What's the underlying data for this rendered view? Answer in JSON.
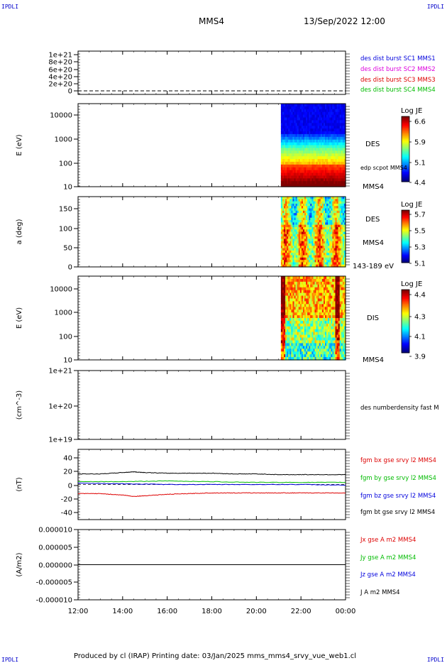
{
  "corner_label": "IPDLI",
  "header": {
    "spacecraft": "MMS4",
    "datetime": "13/Sep/2022 12:00"
  },
  "footer": "Produced by cl (IRAP)   Printing date: 03/Jan/2025   mms_mms4_srvy_vue_web1.cl",
  "colors": {
    "red": "#dd0000",
    "green": "#00bb00",
    "blue": "#0000dd",
    "magenta": "#dd00dd",
    "black": "#000000",
    "corner": "#0000cc"
  },
  "time_axis": {
    "ticks": [
      "12:00",
      "14:00",
      "16:00",
      "18:00",
      "20:00",
      "22:00",
      "00:00"
    ],
    "start_hours": 12,
    "end_hours": 24
  },
  "chart_data": [
    {
      "id": "p1",
      "type": "line",
      "ylabel": "",
      "yticks": [
        "1e+21",
        "8e+20",
        "6e+20",
        "4e+20",
        "2e+20",
        "0"
      ],
      "legend": [
        {
          "text": "des dist burst SC1 MMS1",
          "color": "#0000dd"
        },
        {
          "text": "des dist burst SC2 MMS2",
          "color": "#dd00dd"
        },
        {
          "text": "des dist burst SC3 MMS3",
          "color": "#dd0000"
        },
        {
          "text": "des dist burst SC4 MMS4",
          "color": "#00bb00"
        }
      ],
      "series": [
        {
          "x": [
            12,
            24
          ],
          "y": [
            0,
            0
          ],
          "style": "dashed"
        }
      ]
    },
    {
      "id": "p2",
      "type": "heatmap",
      "ylabel": "E (eV)",
      "yscale": "log",
      "yticks": [
        "10000",
        "1000",
        "100",
        "10"
      ],
      "side_labels": [
        "DES",
        "edp scpot MMS4",
        "MMS4"
      ],
      "colorbar": {
        "title": "Log JE",
        "ticks": [
          "6.6",
          "5.9",
          "5.1",
          "4.4"
        ]
      },
      "data_start_hours": 21.1
    },
    {
      "id": "p3",
      "type": "heatmap",
      "ylabel": "a (deg)",
      "yticks": [
        "150",
        "100",
        "50",
        "0"
      ],
      "side_labels": [
        "DES",
        "MMS4",
        "143-189 eV"
      ],
      "colorbar": {
        "title": "Log JE",
        "ticks": [
          "5.7",
          "5.5",
          "5.3",
          "5.1"
        ]
      },
      "data_start_hours": 21.1
    },
    {
      "id": "p4",
      "type": "heatmap",
      "ylabel": "E (eV)",
      "yscale": "log",
      "yticks": [
        "10000",
        "1000",
        "100",
        "10"
      ],
      "side_labels": [
        "DIS",
        "MMS4"
      ],
      "colorbar": {
        "title": "Log JE",
        "ticks": [
          "4.4",
          "4.3",
          "4.1",
          "3.9"
        ]
      },
      "data_start_hours": 21.1
    },
    {
      "id": "p5",
      "type": "line",
      "ylabel": "(cm^-3)",
      "yscale": "log",
      "yticks": [
        "1e+21",
        "1e+20",
        "1e+19"
      ],
      "legend": [
        {
          "text": "des numberdensity fast M",
          "color": "#000000"
        }
      ],
      "series": []
    },
    {
      "id": "p6",
      "type": "line",
      "ylabel": "(nT)",
      "yticks": [
        "40",
        "20",
        "0",
        "-20",
        "-40"
      ],
      "ylim": [
        -50,
        50
      ],
      "legend": [
        {
          "text": "fgm bx gse srvy l2 MMS4",
          "color": "#dd0000"
        },
        {
          "text": "fgm by gse srvy l2 MMS4",
          "color": "#00bb00"
        },
        {
          "text": "fgm bz gse srvy l2 MMS4",
          "color": "#0000dd"
        },
        {
          "text": "fgm bt gse srvy l2 MMS4",
          "color": "#000000"
        }
      ],
      "series": [
        {
          "name": "bt",
          "color": "#000000",
          "x": [
            12,
            13,
            14,
            14.5,
            15,
            16,
            17,
            18,
            19,
            20,
            21,
            22,
            23,
            24
          ],
          "y": [
            15,
            15,
            17,
            18,
            17,
            16,
            16,
            16,
            15,
            15,
            14,
            14,
            14,
            14
          ]
        },
        {
          "name": "by",
          "color": "#00bb00",
          "x": [
            12,
            14,
            16,
            18,
            20,
            22,
            24
          ],
          "y": [
            4,
            4,
            5,
            4,
            3,
            3,
            3
          ]
        },
        {
          "name": "bz",
          "color": "#0000dd",
          "x": [
            12,
            14,
            16,
            18,
            20,
            22,
            24
          ],
          "y": [
            2,
            1,
            0,
            0,
            0,
            0,
            -1
          ]
        },
        {
          "name": "bx",
          "color": "#dd0000",
          "x": [
            12,
            13,
            14,
            14.5,
            15,
            16,
            17,
            18,
            19,
            20,
            21,
            22,
            23,
            24
          ],
          "y": [
            -13,
            -13,
            -15,
            -17,
            -16,
            -14,
            -13,
            -12,
            -12,
            -12,
            -12,
            -12,
            -12,
            -12
          ]
        }
      ],
      "dashed_zero": true
    },
    {
      "id": "p7",
      "type": "line",
      "ylabel": "(A/m2)",
      "yticks": [
        "0.000010",
        "0.000005",
        "0.000000",
        "-0.000005",
        "-0.000010"
      ],
      "ylim": [
        -1e-05,
        1e-05
      ],
      "legend": [
        {
          "text": "Jx gse A m2 MMS4",
          "color": "#dd0000"
        },
        {
          "text": "Jy gse A m2 MMS4",
          "color": "#00bb00"
        },
        {
          "text": "Jz gse A m2 MMS4",
          "color": "#0000dd"
        },
        {
          "text": "J A m2 MMS4",
          "color": "#000000"
        }
      ],
      "series": [
        {
          "name": "J",
          "color": "#000000",
          "x": [
            12,
            24
          ],
          "y": [
            0,
            0
          ]
        }
      ]
    }
  ]
}
